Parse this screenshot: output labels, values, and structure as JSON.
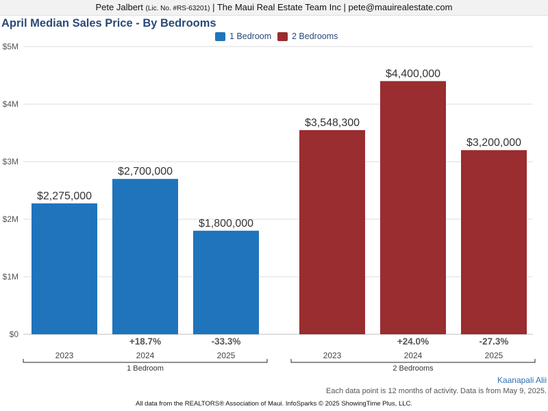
{
  "header": {
    "agent_name": "Pete Jalbert",
    "license": "(Lic. No. #RS-63201)",
    "rest": "| The Maui Real Estate Team Inc | pete@mauirealestate.com"
  },
  "footer": {
    "location": "Kaanapali Alii",
    "note": "Each data point is 12 months of activity. Data is from May 9, 2025.",
    "source": "All data from the REALTORS® Association of Maui. InfoSparks © 2025 ShowingTime Plus, LLC."
  },
  "chart_data": {
    "type": "bar",
    "title": "April Median Sales Price - By Bedrooms",
    "ylim": [
      0,
      5000000
    ],
    "y_ticks": [
      {
        "value": 0,
        "label": "$0"
      },
      {
        "value": 1000000,
        "label": "$1M"
      },
      {
        "value": 2000000,
        "label": "$2M"
      },
      {
        "value": 3000000,
        "label": "$3M"
      },
      {
        "value": 4000000,
        "label": "$4M"
      },
      {
        "value": 5000000,
        "label": "$5M"
      }
    ],
    "grid": true,
    "legend_position": "top-center",
    "categories": [
      "2023",
      "2024",
      "2025"
    ],
    "series": [
      {
        "name": "1 Bedroom",
        "group_label": "1 Bedroom",
        "color": "#1f74bb",
        "values": [
          2275000,
          2700000,
          1800000
        ],
        "value_labels": [
          "$2,275,000",
          "$2,700,000",
          "$1,800,000"
        ],
        "changes": [
          "",
          "+18.7%",
          "-33.3%"
        ]
      },
      {
        "name": "2 Bedrooms",
        "group_label": "2 Bedrooms",
        "color": "#992d2f",
        "values": [
          3548300,
          4400000,
          3200000
        ],
        "value_labels": [
          "$3,548,300",
          "$4,400,000",
          "$3,200,000"
        ],
        "changes": [
          "",
          "+24.0%",
          "-27.3%"
        ]
      }
    ]
  }
}
